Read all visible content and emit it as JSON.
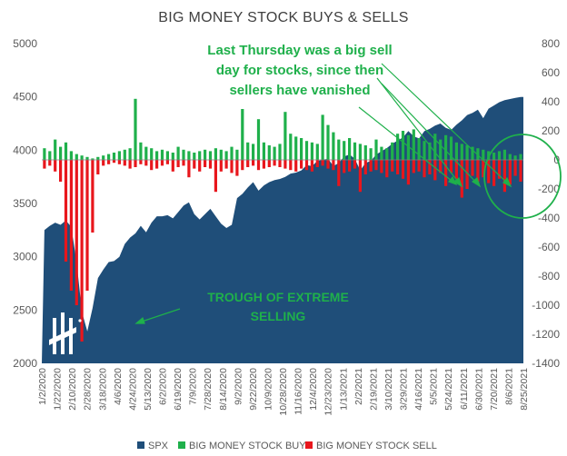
{
  "chart_data": {
    "type": "bar",
    "title": "BIG MONEY STOCK BUYS & SELLS",
    "left_axis": {
      "min": 2000,
      "max": 5000,
      "ticks": [
        2000,
        2500,
        3000,
        3500,
        4000,
        4500,
        5000
      ]
    },
    "right_axis": {
      "min": -1400,
      "max": 800,
      "ticks": [
        -1400,
        -1200,
        -1000,
        -800,
        -600,
        -400,
        -200,
        0,
        200,
        400,
        600,
        800
      ]
    },
    "x_tick_labels": [
      "1/2/2020",
      "1/22/2020",
      "2/10/2020",
      "2/28/2020",
      "3/18/2020",
      "4/6/2020",
      "4/24/2020",
      "5/13/2020",
      "6/2/2020",
      "6/19/2020",
      "7/9/2020",
      "7/28/2020",
      "8/14/2020",
      "9/2/2020",
      "9/22/2020",
      "10/9/2020",
      "10/28/2020",
      "11/16/2020",
      "12/4/2020",
      "12/23/2020",
      "1/13/2021",
      "2/2/2021",
      "2/19/2021",
      "3/10/2021",
      "3/29/2021",
      "4/16/2021",
      "5/5/2021",
      "5/24/2021",
      "6/11/2021",
      "6/30/2021",
      "7/20/2021",
      "8/6/2021",
      "8/25/2021"
    ],
    "series": [
      {
        "name": "SPX",
        "color": "#1f4e79",
        "values": [
          3250,
          3290,
          3320,
          3300,
          3340,
          3280,
          2950,
          2480,
          2300,
          2520,
          2800,
          2880,
          2950,
          2960,
          3000,
          3120,
          3180,
          3220,
          3290,
          3230,
          3320,
          3380,
          3380,
          3390,
          3360,
          3420,
          3480,
          3510,
          3400,
          3350,
          3400,
          3450,
          3380,
          3310,
          3270,
          3300,
          3550,
          3590,
          3650,
          3700,
          3620,
          3670,
          3700,
          3720,
          3730,
          3750,
          3780,
          3790,
          3810,
          3860,
          3850,
          3900,
          3910,
          3920,
          3850,
          3880,
          3940,
          3960,
          3920,
          3810,
          3880,
          3900,
          3960,
          3990,
          4020,
          4060,
          4090,
          4120,
          4180,
          4130,
          4110,
          4180,
          4200,
          4230,
          4250,
          4210,
          4190,
          4240,
          4280,
          4330,
          4350,
          4380,
          4300,
          4390,
          4420,
          4450,
          4470,
          4480,
          4490,
          4500
        ]
      },
      {
        "name": "BIG MONEY STOCK BUY",
        "color": "#1fb04b",
        "values": [
          80,
          60,
          140,
          90,
          120,
          60,
          40,
          30,
          20,
          10,
          20,
          30,
          40,
          50,
          60,
          70,
          80,
          420,
          120,
          90,
          80,
          60,
          70,
          60,
          50,
          90,
          70,
          60,
          50,
          60,
          70,
          60,
          80,
          70,
          60,
          90,
          70,
          350,
          120,
          110,
          280,
          120,
          100,
          90,
          110,
          330,
          180,
          160,
          150,
          130,
          120,
          110,
          310,
          240,
          190,
          140,
          130,
          150,
          120,
          110,
          100,
          80,
          140,
          90,
          80,
          120,
          180,
          200,
          170,
          210,
          150,
          130,
          120,
          180,
          140,
          170,
          160,
          120,
          110,
          100,
          90,
          80,
          70,
          60,
          50,
          60,
          70,
          40,
          30,
          40
        ]
      },
      {
        "name": "BIG MONEY STOCK SELL",
        "color": "#e8161c",
        "values": [
          -60,
          -40,
          -80,
          -150,
          -700,
          -900,
          -1000,
          -1250,
          -900,
          -500,
          -100,
          -40,
          -30,
          -20,
          -30,
          -40,
          -60,
          -50,
          -30,
          -40,
          -70,
          -60,
          -40,
          -30,
          -80,
          -50,
          -40,
          -120,
          -60,
          -80,
          -50,
          -60,
          -220,
          -80,
          -60,
          -90,
          -110,
          -70,
          -50,
          -40,
          -70,
          -60,
          -50,
          -40,
          -50,
          -60,
          -70,
          -80,
          -60,
          -70,
          -80,
          -50,
          -40,
          -60,
          -70,
          -180,
          -90,
          -80,
          -60,
          -220,
          -100,
          -80,
          -70,
          -90,
          -120,
          -80,
          -100,
          -130,
          -170,
          -90,
          -80,
          -120,
          -100,
          -140,
          -90,
          -180,
          -90,
          -130,
          -260,
          -200,
          -110,
          -150,
          -120,
          -160,
          -180,
          -130,
          -220,
          -170,
          -110,
          -150
        ]
      }
    ],
    "legend": [
      "SPX",
      "BIG MONEY STOCK BUY",
      "BIG MONEY STOCK SELL"
    ],
    "legend_placement": "bottom",
    "annotations": {
      "top_note_lines": [
        "Last Thursday was a big sell",
        "day for stocks,  since then",
        "sellers have vanished"
      ],
      "trough_note_lines": [
        "TROUGH OF EXTREME",
        "SELLING"
      ]
    },
    "grid": false
  }
}
